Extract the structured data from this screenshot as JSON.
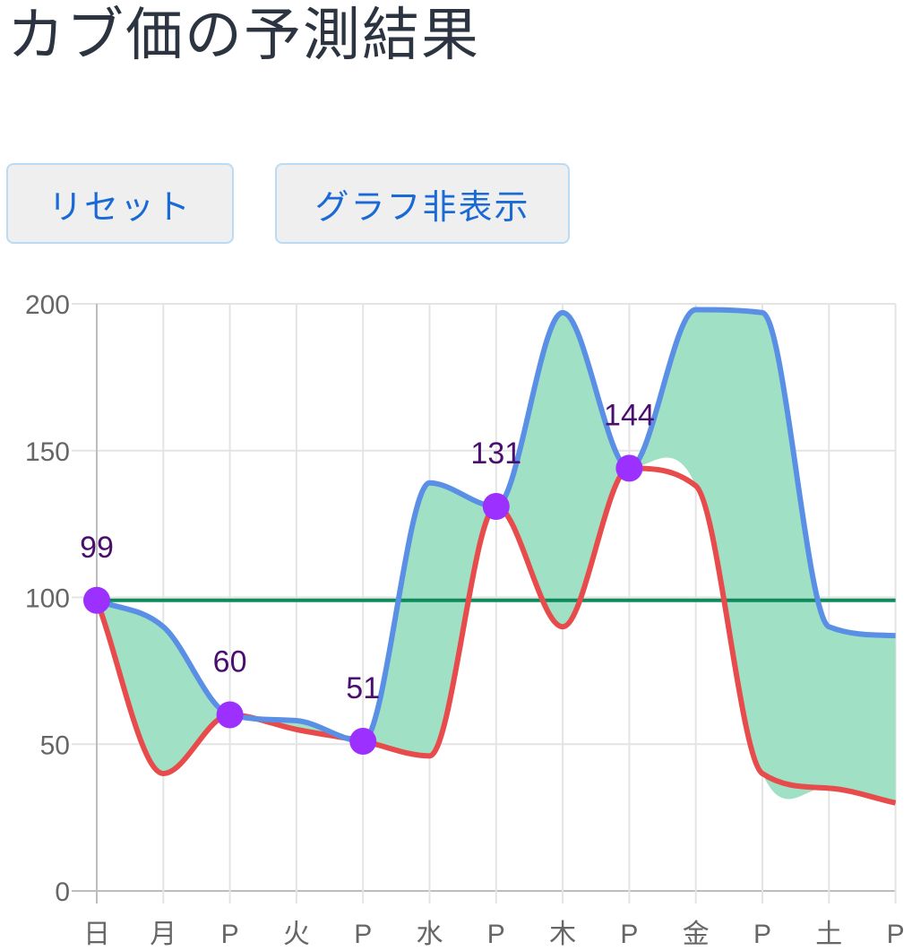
{
  "title": "カブ価の予測結果",
  "buttons": {
    "reset": "リセット",
    "hide_graph": "グラフ非表示"
  },
  "colors": {
    "max": "#5a8fe6",
    "min": "#e84b4b",
    "fill": "#a0e0c4",
    "purchase": "#0e8a5c",
    "point": "#9b30ff",
    "grid": "#e4e4e4"
  },
  "chart_data": {
    "type": "area",
    "categories": [
      "日",
      "月",
      "P",
      "火",
      "P",
      "水",
      "P",
      "木",
      "P",
      "金",
      "P",
      "土",
      "P"
    ],
    "ylim": [
      0,
      200
    ],
    "yticks": [
      0,
      50,
      100,
      150,
      200
    ],
    "grid": true,
    "series": [
      {
        "values": [
          99,
          90,
          60,
          58,
          51,
          139,
          131,
          197,
          144,
          198,
          197,
          90,
          87
        ]
      },
      {
        "values": [
          99,
          40,
          60,
          55,
          51,
          46,
          131,
          90,
          144,
          138,
          40,
          35,
          30
        ]
      },
      {
        "values": [
          99,
          99,
          99,
          99,
          99,
          99,
          99,
          99,
          99,
          99,
          99,
          99,
          99
        ]
      }
    ],
    "points": [
      {
        "index": 0,
        "value": 99,
        "label": "99"
      },
      {
        "index": 2,
        "value": 60,
        "label": "60"
      },
      {
        "index": 4,
        "value": 51,
        "label": "51"
      },
      {
        "index": 6,
        "value": 131,
        "label": "131"
      },
      {
        "index": 8,
        "value": 144,
        "label": "144"
      }
    ]
  }
}
